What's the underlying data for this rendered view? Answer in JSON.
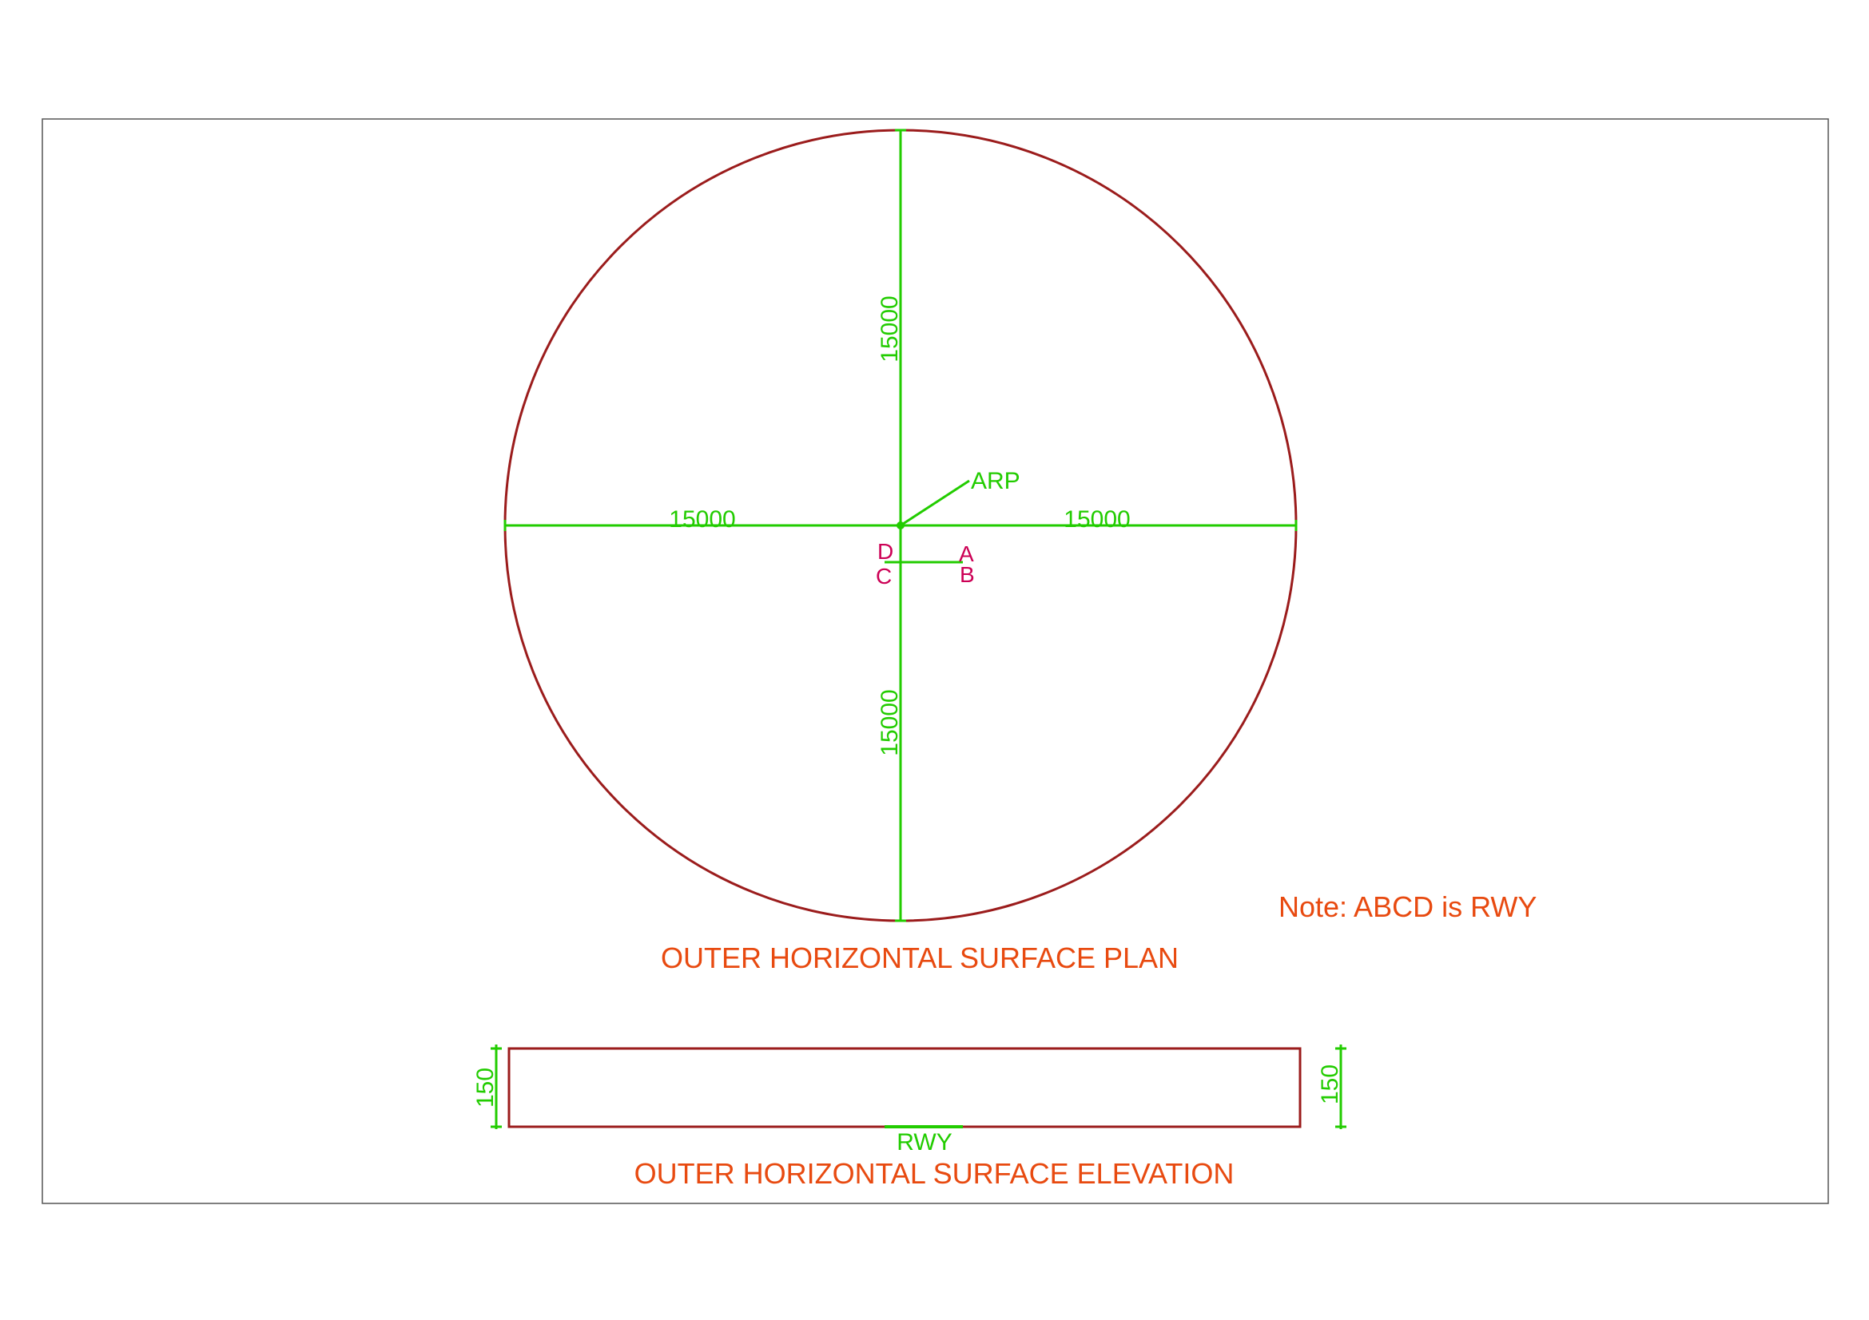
{
  "colors": {
    "outline": "#9b1c1c",
    "dimension": "#22cc00",
    "point_labels": "#cc0055",
    "titles": "#e84a10",
    "frame": "#555555",
    "background": "#ffffff"
  },
  "plan": {
    "title": "OUTER HORIZONTAL SURFACE PLAN",
    "reference_point_label": "ARP",
    "radius_top_label": "15000",
    "radius_bottom_label": "15000",
    "radius_left_label": "15000",
    "radius_right_label": "15000",
    "runway_corners": {
      "a": "A",
      "b": "B",
      "c": "C",
      "d": "D"
    }
  },
  "note": "Note: ABCD is RWY",
  "elevation": {
    "title": "OUTER HORIZONTAL SURFACE ELEVATION",
    "height_left_label": "150",
    "height_right_label": "150",
    "runway_label": "RWY"
  }
}
